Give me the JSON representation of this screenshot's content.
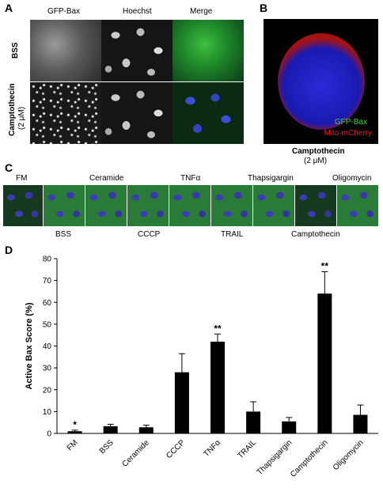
{
  "panel_a": {
    "letter": "A",
    "columns": [
      "GFP-Bax",
      "Hoechst",
      "Merge"
    ],
    "rows": [
      "BSS",
      "Camptothecin",
      "(2 μM)"
    ]
  },
  "panel_b": {
    "letter": "B",
    "legend_gfp": "GFP-Bax",
    "legend_mito": "Mito-mCherry",
    "caption_line1": "Camptothecin",
    "caption_line2": "(2 μM)"
  },
  "panel_c": {
    "letter": "C",
    "top_labels": [
      "FM",
      "Ceramide",
      "TNFα",
      "Thapsigargin",
      "Oligomycin"
    ],
    "bottom_labels": [
      "BSS",
      "CCCP",
      "TRAIL",
      "Camptothecin"
    ]
  },
  "panel_d": {
    "letter": "D"
  },
  "chart_data": {
    "type": "bar",
    "ylabel": "Active Bax Score (%)",
    "ylim": [
      0,
      80
    ],
    "yticks": [
      0,
      10,
      20,
      30,
      40,
      50,
      60,
      70,
      80
    ],
    "categories": [
      "FM",
      "BSS",
      "Ceramide",
      "CCCP",
      "TNFα",
      "TRAIL",
      "Thapsigargin",
      "Camptothecin",
      "Oligomycin"
    ],
    "values": [
      1,
      3.3,
      2.8,
      28,
      42,
      10,
      5.5,
      64,
      8.5
    ],
    "errors": [
      0.5,
      0.9,
      1.0,
      8.5,
      3.5,
      4.5,
      1.8,
      10,
      4.5
    ],
    "significance": [
      "*",
      "",
      "",
      "",
      "**",
      "",
      "",
      "**",
      ""
    ],
    "bar_color": "#000000",
    "grid": false
  }
}
